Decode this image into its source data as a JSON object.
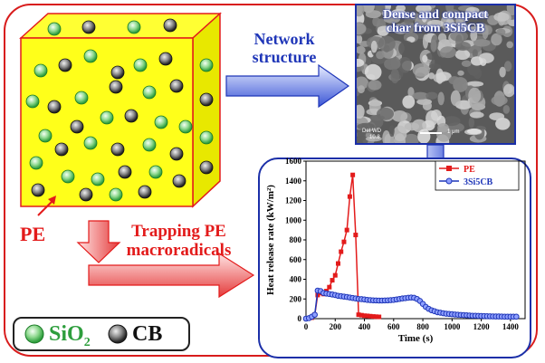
{
  "labels": {
    "network_structure": [
      "Network",
      "structure"
    ],
    "pe": "PE",
    "trapping": [
      "Trapping PE",
      "macroradicals"
    ]
  },
  "sem": {
    "caption": [
      "Dense and compact",
      "char from 3Si5CB"
    ],
    "scale_text": "1 μm",
    "det_text": "Det  WD",
    "value_text": "10.8"
  },
  "legend": {
    "sio2_label": "SiO",
    "sio2_sub": "2",
    "cb_label": "CB",
    "sio2_color": "#3cba48",
    "cb_color": "#444444"
  },
  "chart_data": {
    "type": "line",
    "xlabel": "Time (s)",
    "ylabel": "Heat release rate (kW/m²)",
    "xlim": [
      0,
      1500
    ],
    "ylim": [
      0,
      1600
    ],
    "xticks": [
      0,
      200,
      400,
      600,
      800,
      1000,
      1200,
      1400
    ],
    "yticks": [
      0,
      200,
      400,
      600,
      800,
      1000,
      1200,
      1400,
      1600
    ],
    "series": [
      {
        "name": "PE",
        "color": "#e31b1b",
        "marker": "square",
        "x": [
          0,
          20,
          40,
          60,
          80,
          100,
          120,
          140,
          160,
          180,
          200,
          220,
          240,
          260,
          280,
          300,
          320,
          340,
          360,
          380,
          400,
          420,
          440,
          460,
          480,
          500
        ],
        "y": [
          0,
          5,
          10,
          40,
          240,
          260,
          250,
          280,
          320,
          390,
          440,
          560,
          680,
          780,
          900,
          1240,
          1460,
          850,
          40,
          35,
          30,
          28,
          25,
          22,
          20,
          18
        ]
      },
      {
        "name": "3Si5CB",
        "color": "#1f36b8",
        "marker": "circle",
        "x": [
          0,
          20,
          40,
          60,
          80,
          100,
          120,
          140,
          160,
          180,
          200,
          220,
          240,
          260,
          280,
          300,
          320,
          340,
          360,
          380,
          400,
          420,
          440,
          460,
          480,
          500,
          520,
          540,
          560,
          580,
          600,
          620,
          640,
          660,
          680,
          700,
          720,
          740,
          760,
          780,
          800,
          820,
          840,
          860,
          880,
          900,
          920,
          940,
          960,
          980,
          1000,
          1020,
          1040,
          1060,
          1080,
          1100,
          1120,
          1140,
          1160,
          1180,
          1200,
          1220,
          1240,
          1260,
          1280,
          1300,
          1320,
          1340,
          1360,
          1380,
          1400,
          1420,
          1440
        ],
        "y": [
          0,
          5,
          20,
          40,
          285,
          280,
          260,
          255,
          250,
          245,
          240,
          232,
          228,
          224,
          220,
          215,
          210,
          205,
          200,
          198,
          195,
          190,
          188,
          186,
          185,
          184,
          184,
          185,
          186,
          188,
          190,
          195,
          200,
          205,
          208,
          212,
          214,
          212,
          200,
          180,
          150,
          120,
          100,
          85,
          75,
          65,
          60,
          55,
          50,
          48,
          45,
          42,
          40,
          38,
          36,
          34,
          32,
          30,
          30,
          28,
          27,
          26,
          25,
          24,
          23,
          22,
          22,
          21,
          20,
          20,
          20,
          20,
          20
        ]
      }
    ]
  }
}
